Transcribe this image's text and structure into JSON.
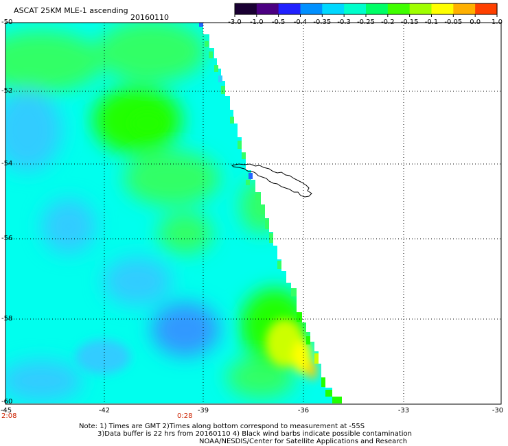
{
  "header": {
    "title": "ASCAT 25KM MLE-1 ascending",
    "date": "20160110"
  },
  "colorbar": {
    "labels": [
      "-3.0",
      "-1.0",
      "-0.5",
      "-0.4",
      "-0.35",
      "-0.3",
      "-0.25",
      "-0.2",
      "-0.15",
      "-0.1",
      "-0.05",
      "0.0",
      "1.0"
    ],
    "colors": [
      "#1a0033",
      "#4b0082",
      "#2020ff",
      "#0090ff",
      "#00d8ff",
      "#00ffcc",
      "#00ff66",
      "#40ff00",
      "#a0ff00",
      "#ffff00",
      "#ffb000",
      "#ff4000"
    ]
  },
  "map": {
    "lat_ticks": [
      "-50",
      "-52",
      "-54",
      "-56",
      "-58",
      "-60"
    ],
    "lon_ticks": [
      "-45",
      "-42",
      "-39",
      "-36",
      "-33",
      "-30"
    ],
    "times": [
      "2:08",
      "0:28"
    ],
    "field_colors": {
      "cyan": "#00ffee",
      "light_blue": "#33ccff",
      "blue": "#3399ff",
      "green": "#33ff66",
      "bright_green": "#22ff00",
      "yellow_green": "#ccff00",
      "yellow": "#ffff00",
      "orange": "#ffcc00",
      "island_blue": "#2266ff"
    }
  },
  "notes": {
    "line1": "Note: 1) Times are GMT 2)Times along bottom correspond to measurement at -55S",
    "line2": "3)Data buffer is 22 hrs from 20160110 4) Black wind barbs indicate possible contamination",
    "line3": "NOAA/NESDIS/Center for Satellite Applications and Research"
  }
}
